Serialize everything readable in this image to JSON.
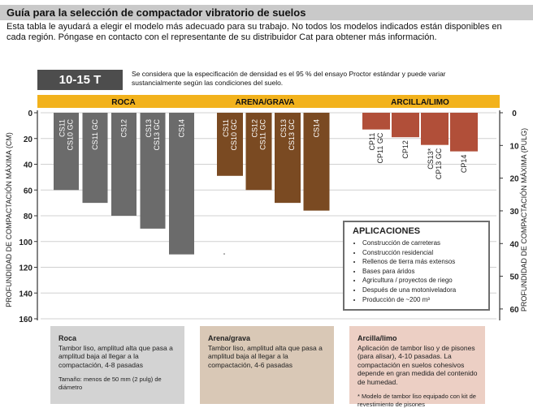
{
  "header": {
    "title": "Guía para la selección de compactador vibratorio de suelos",
    "intro": "Esta tabla le ayudará a elegir el modelo más adecuado para su trabajo. No todos los modelos indicados están disponibles en cada región. Póngase en contacto con el representante de su distribuidor Cat para obtener más información."
  },
  "tonnage_label": "10-15 T",
  "density_note": "Se considera que la especificación de densidad es el 95 % del ensayo Proctor estándar y puede variar sustancialmente según las condiciones del suelo.",
  "chart_data": {
    "type": "bar",
    "orientation": "downward",
    "left_axis": {
      "label": "PROFUNDIDAD DE COMPACTACIÓN MÁXIMA (CM)",
      "range": [
        0,
        160
      ],
      "ticks": [
        "0",
        "20",
        "40",
        "60",
        "80",
        "100",
        "120",
        "140",
        "160"
      ]
    },
    "right_axis": {
      "label": "PROFUNDIDAD DE COMPACTACIÓN MÁXIMA (PULG)",
      "range": [
        0,
        63
      ],
      "ticks": [
        "0",
        "10",
        "20",
        "30",
        "40",
        "50",
        "60"
      ]
    },
    "groups": [
      {
        "name": "ROCA",
        "color": "#6b6b6b",
        "bars": [
          {
            "label": "CS11\nCS10 GC",
            "value": 60
          },
          {
            "label": "CS11 GC",
            "value": 70
          },
          {
            "label": "CS12",
            "value": 80
          },
          {
            "label": "CS13\nCS13 GC",
            "value": 90
          },
          {
            "label": "CS14",
            "value": 110
          }
        ]
      },
      {
        "name": "ARENA/GRAVA",
        "color": "#7a4a22",
        "bars": [
          {
            "label": "CS11\nCS10 GC",
            "value": 49
          },
          {
            "label": "CS12\nCS11 GC",
            "value": 60
          },
          {
            "label": "CS13\nCS13 GC",
            "value": 70
          },
          {
            "label": "CS14",
            "value": 76
          }
        ]
      },
      {
        "name": "ARCILLA/LIMO",
        "color": "#b14f39",
        "bars": [
          {
            "label": "CP11\nCP11 GC",
            "value": 13
          },
          {
            "label": "CP12",
            "value": 19
          },
          {
            "label": "CS13*\nCP13 GC",
            "value": 25
          },
          {
            "label": "CP14",
            "value": 30
          }
        ]
      }
    ],
    "grid": true,
    "header_band_color": "#f2b21c"
  },
  "applications": {
    "title": "APLICACIONES",
    "items": [
      "Construcción de carreteras",
      "Construcción residencial",
      "Rellenos de tierra más extensos",
      "Bases para áridos",
      "Agricultura / proyectos de riego",
      "Después de una motoniveladora",
      "Producción de ~200 m³"
    ]
  },
  "categories": [
    {
      "name": "Roca",
      "desc": "Tambor liso, amplitud alta que pasa a amplitud baja al llegar a la compactación, 4-8 pasadas",
      "note": "Tamaño: menos de 50 mm (2 pulg) de diámetro",
      "bg": "#d3d3d3"
    },
    {
      "name": "Arena/grava",
      "desc": "Tambor liso, amplitud alta que pasa a amplitud baja al llegar a la compactación, 4-6 pasadas",
      "note": "",
      "bg": "#d9c8b6"
    },
    {
      "name": "Arcilla/limo",
      "desc": "Aplicación de tambor liso y de pisones (para alisar), 4-10 pasadas. La compactación en suelos cohesivos depende en gran medida del contenido de humedad.",
      "note": "* Modelo de tambor liso equipado con kit de revestimiento de pisones",
      "bg": "#eccfc4"
    }
  ]
}
